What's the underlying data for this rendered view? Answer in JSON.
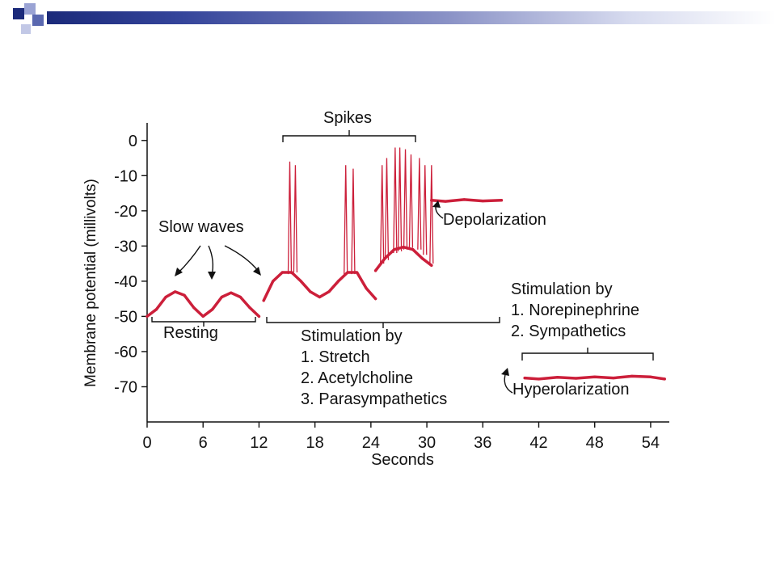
{
  "slide": {
    "accent_colors": [
      "#1b2a7a",
      "#5a68b0",
      "#9aa3d4"
    ]
  },
  "chart_data": {
    "type": "line",
    "title": "",
    "xlabel": "Seconds",
    "ylabel": "Membrane potential (millivolts)",
    "xlim": [
      0,
      56
    ],
    "ylim": [
      -80,
      5
    ],
    "x_ticks": [
      "0",
      "6",
      "12",
      "18",
      "24",
      "30",
      "36",
      "42",
      "48",
      "54"
    ],
    "y_ticks": [
      "0",
      "-10",
      "-20",
      "-30",
      "-40",
      "-50",
      "-60",
      "-70"
    ],
    "series_color": "#cc1f3a",
    "series": [
      {
        "segment": "resting",
        "x": [
          0,
          1,
          2,
          3,
          4,
          5,
          6,
          7,
          8,
          9,
          10,
          11,
          12
        ],
        "y": [
          -50,
          -48,
          -44.5,
          -43,
          -44,
          -47.5,
          -50,
          -48,
          -44.5,
          -43.3,
          -44.5,
          -47.5,
          -50
        ]
      },
      {
        "segment": "stimulation-slow",
        "x": [
          12.5,
          13.5,
          14.5,
          15.5,
          16.5,
          17.5,
          18.5,
          19.5,
          20.5,
          21.5,
          22.5,
          23.5,
          24.5
        ],
        "y": [
          -45.5,
          -40,
          -37.5,
          -37.5,
          -40,
          -43,
          -44.5,
          -43,
          -40,
          -37.5,
          -37.5,
          -42,
          -45
        ]
      },
      {
        "segment": "stimulation-burst",
        "x": [
          24.5,
          25.5,
          26.5,
          27.5,
          28.5,
          29.5,
          30.5
        ],
        "y": [
          -37,
          -33.5,
          -31,
          -30.3,
          -31,
          -33.5,
          -35.5
        ]
      },
      {
        "segment": "depolarization",
        "x": [
          30.5,
          32,
          34,
          36,
          38
        ],
        "y": [
          -17,
          -17.3,
          -16.8,
          -17.2,
          -17
        ]
      },
      {
        "segment": "hyperpolarization",
        "x": [
          40.5,
          42,
          44,
          46,
          48,
          50,
          52,
          54,
          55.5
        ],
        "y": [
          -67.5,
          -67.8,
          -67.3,
          -67.6,
          -67.2,
          -67.5,
          -67,
          -67.2,
          -67.8
        ]
      }
    ],
    "spikes": [
      {
        "x": 15.3,
        "base": -38,
        "peak": -6
      },
      {
        "x": 15.9,
        "base": -37.5,
        "peak": -7
      },
      {
        "x": 21.3,
        "base": -38,
        "peak": -7
      },
      {
        "x": 22.1,
        "base": -38,
        "peak": -8
      },
      {
        "x": 25.2,
        "base": -35,
        "peak": -7
      },
      {
        "x": 25.7,
        "base": -34,
        "peak": -5
      },
      {
        "x": 26.6,
        "base": -32,
        "peak": -2
      },
      {
        "x": 27.1,
        "base": -31.5,
        "peak": -2
      },
      {
        "x": 27.7,
        "base": -31,
        "peak": -2.5
      },
      {
        "x": 28.3,
        "base": -30.5,
        "peak": -4
      },
      {
        "x": 29.2,
        "base": -31,
        "peak": -5
      },
      {
        "x": 29.8,
        "base": -32.5,
        "peak": -7
      },
      {
        "x": 30.5,
        "base": -35,
        "peak": -7
      }
    ],
    "annotations": {
      "spikes": "Spikes",
      "slow_waves": "Slow waves",
      "depolarization": "Depolarization",
      "resting": "Resting",
      "stim1_title": "Stimulation by",
      "stim1_item1": "1. Stretch",
      "stim1_item2": "2. Acetylcholine",
      "stim1_item3": "3. Parasympathetics",
      "stim2_title": "Stimulation by",
      "stim2_item1": "1. Norepinephrine",
      "stim2_item2": "2. Sympathetics",
      "hyperpolarization": "Hyperolarization"
    }
  }
}
